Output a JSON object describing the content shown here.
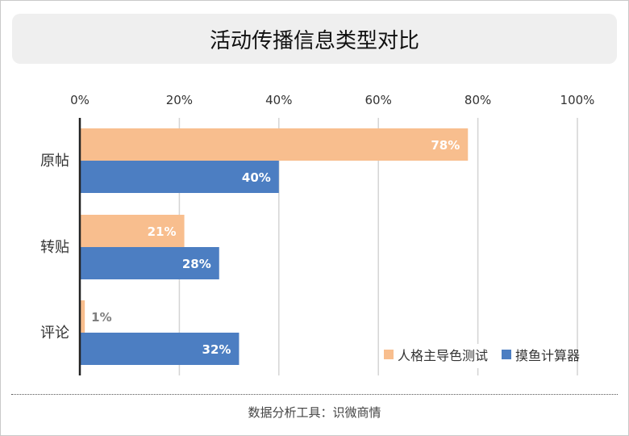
{
  "title": "活动传播信息类型对比",
  "footer": "数据分析工具：识微商情",
  "chart_data": {
    "type": "bar",
    "orientation": "horizontal",
    "title": "活动传播信息类型对比",
    "categories": [
      "原帖",
      "转贴",
      "评论"
    ],
    "series": [
      {
        "name": "人格主导色测试",
        "color": "#F8BE8E",
        "values": [
          78,
          21,
          1
        ]
      },
      {
        "name": "摸鱼计算器",
        "color": "#4C7EC2",
        "values": [
          40,
          28,
          32
        ]
      }
    ],
    "value_unit": "%",
    "xlim": [
      0,
      100
    ],
    "x_ticks": [
      "0%",
      "20%",
      "40%",
      "60%",
      "80%",
      "100%"
    ],
    "x_axis_position": "top",
    "grid": true,
    "legend": "bottom-right"
  }
}
